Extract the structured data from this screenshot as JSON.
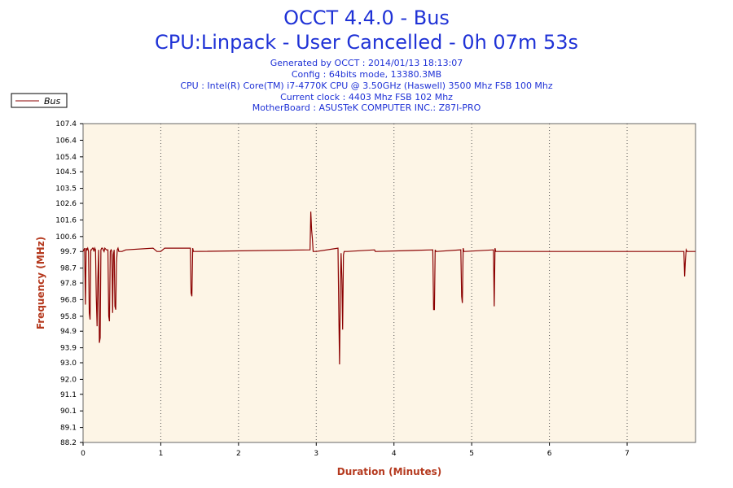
{
  "chart_data": {
    "type": "line",
    "title": "OCCT 4.4.0 - Bus",
    "subtitle": "CPU:Linpack - User Cancelled - 0h 07m 53s",
    "info_lines": [
      "Generated by OCCT : 2014/01/13 18:13:07",
      "Config : 64bits mode, 13380.3MB",
      "CPU : Intel(R) Core(TM) i7-4770K CPU @ 3.50GHz (Haswell) 3500 Mhz FSB 100 Mhz",
      "Current clock : 4403 Mhz FSB 102 Mhz",
      "MotherBoard : ASUSTeK COMPUTER INC.: Z87I-PRO"
    ],
    "xlabel": "Duration (Minutes)",
    "ylabel": "Frequency (MHz)",
    "xlim": [
      0,
      7.88
    ],
    "ylim": [
      88.2,
      107.4
    ],
    "xticks": [
      0,
      1,
      2,
      3,
      4,
      5,
      6,
      7
    ],
    "xtick_labels": [
      "0",
      "1",
      "2",
      "3",
      "4",
      "5",
      "6",
      "7"
    ],
    "yticks": [
      88.2,
      89.1,
      90.1,
      91.1,
      92.0,
      93.0,
      93.9,
      94.9,
      95.8,
      96.8,
      97.8,
      98.7,
      99.7,
      100.6,
      101.6,
      102.6,
      103.5,
      104.5,
      105.4,
      106.4,
      107.4
    ],
    "ytick_labels": [
      "88.2",
      "89.1",
      "90.1",
      "91.1",
      "92.0",
      "93.0",
      "93.9",
      "94.9",
      "95.8",
      "96.8",
      "97.8",
      "98.7",
      "99.7",
      "100.6",
      "101.6",
      "102.6",
      "103.5",
      "104.5",
      "105.4",
      "106.4",
      "107.4"
    ],
    "grid": "vertical-dotted",
    "legend_position": "top-left",
    "colors": {
      "line": "#8b0000",
      "plot_background": "#fdf5e6",
      "grid": "#555555",
      "title": "#1f32d6",
      "axis_title": "#b53a1f"
    },
    "series": [
      {
        "name": "Bus",
        "x": [
          0,
          0.02,
          0.03,
          0.04,
          0.05,
          0.06,
          0.07,
          0.08,
          0.09,
          0.1,
          0.11,
          0.12,
          0.13,
          0.14,
          0.15,
          0.16,
          0.17,
          0.18,
          0.19,
          0.2,
          0.21,
          0.22,
          0.23,
          0.24,
          0.25,
          0.26,
          0.27,
          0.28,
          0.3,
          0.32,
          0.33,
          0.34,
          0.35,
          0.36,
          0.37,
          0.38,
          0.39,
          0.4,
          0.41,
          0.42,
          0.43,
          0.44,
          0.45,
          0.46,
          0.47,
          0.48,
          0.49,
          0.5,
          0.55,
          0.9,
          0.95,
          1.0,
          1.05,
          1.38,
          1.39,
          1.4,
          1.41,
          1.42,
          1.43,
          2.92,
          2.93,
          2.94,
          2.95,
          2.96,
          2.97,
          3.0,
          3.28,
          3.29,
          3.3,
          3.31,
          3.32,
          3.33,
          3.34,
          3.35,
          3.36,
          3.37,
          3.38,
          3.39,
          3.4,
          3.75,
          3.76,
          3.77,
          4.5,
          4.51,
          4.52,
          4.53,
          4.54,
          4.55,
          4.86,
          4.87,
          4.88,
          4.89,
          4.9,
          4.91,
          5.28,
          5.29,
          5.3,
          5.31,
          5.32,
          7.72,
          7.73,
          7.74,
          7.75,
          7.76,
          7.77,
          7.78,
          7.88
        ],
        "values": [
          99.7,
          99.9,
          96.5,
          99.9,
          99.8,
          99.9,
          99.7,
          96.0,
          95.6,
          99.8,
          99.8,
          99.9,
          99.9,
          99.7,
          99.9,
          99.8,
          97.0,
          95.2,
          98.0,
          99.8,
          94.2,
          94.5,
          99.8,
          99.9,
          99.9,
          99.8,
          99.7,
          99.9,
          99.8,
          99.8,
          95.8,
          95.5,
          99.7,
          99.8,
          99.7,
          96.0,
          99.5,
          99.8,
          96.4,
          96.2,
          99.0,
          99.8,
          99.9,
          99.7,
          99.7,
          99.7,
          99.7,
          99.7,
          99.8,
          99.9,
          99.7,
          99.7,
          99.9,
          99.9,
          97.2,
          97.0,
          99.9,
          99.7,
          99.7,
          99.8,
          102.1,
          101.0,
          100.5,
          99.7,
          99.7,
          99.7,
          99.9,
          96.0,
          92.9,
          97.5,
          99.6,
          98.0,
          95.0,
          99.5,
          99.7,
          99.7,
          99.7,
          99.7,
          99.7,
          99.8,
          99.7,
          99.7,
          99.8,
          96.2,
          96.2,
          99.8,
          99.7,
          99.7,
          99.8,
          97.0,
          96.6,
          99.9,
          99.7,
          99.7,
          99.8,
          96.4,
          99.9,
          99.7,
          99.7,
          99.7,
          99.7,
          98.2,
          99.2,
          99.8,
          99.7,
          99.7,
          99.7
        ]
      }
    ]
  }
}
